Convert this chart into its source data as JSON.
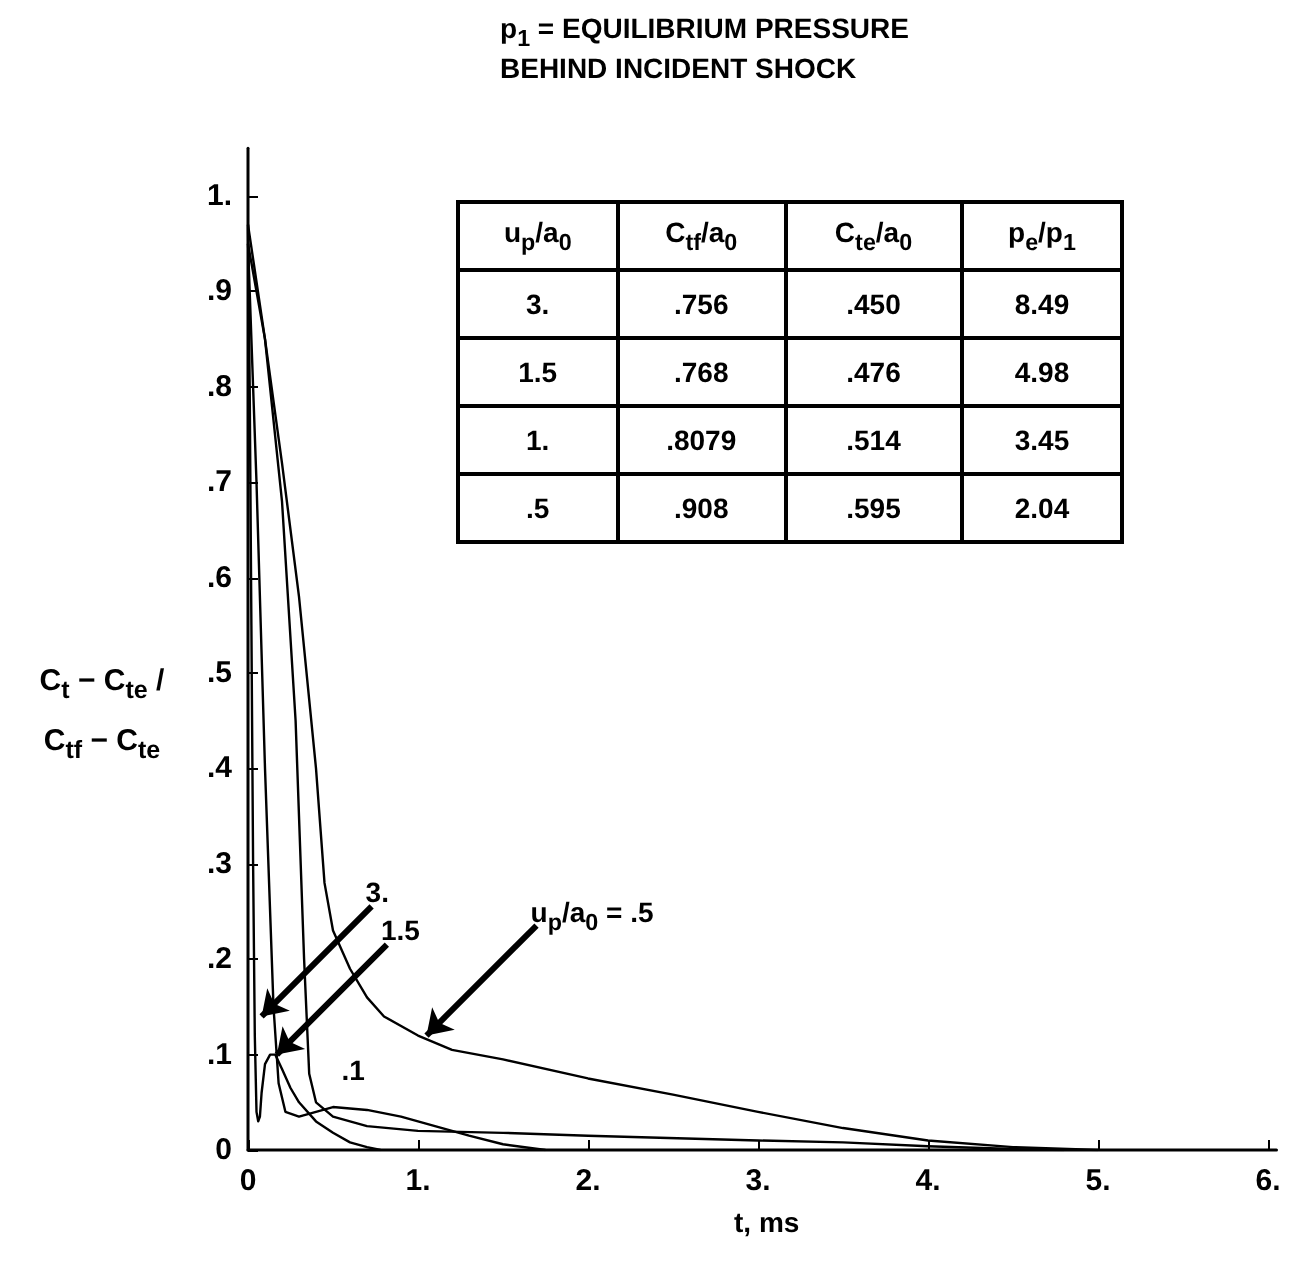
{
  "chart_data": {
    "type": "line",
    "title": "p$_{1}$ = EQUILIBRIUM PRESSURE BEHIND INCIDENT SHOCK",
    "xlabel": "t, ms",
    "ylabel": "C$_{t}$ − C$_{t}$$_{e}$ / C$_{t}$$_{f}$ − C$_{t}$$_{e}$",
    "xlim": [
      0,
      6.05
    ],
    "ylim": [
      0,
      1.05
    ],
    "xticks": [
      0,
      {
        "value": 1,
        "label": "1."
      },
      {
        "value": 2,
        "label": "2."
      },
      {
        "value": 3,
        "label": "3."
      },
      {
        "value": 4,
        "label": "4."
      },
      {
        "value": 5,
        "label": "5."
      },
      {
        "value": 6,
        "label": "6."
      }
    ],
    "yticks": [
      0,
      {
        "value": 0.1,
        "label": ".1"
      },
      {
        "value": 0.2,
        "label": ".2"
      },
      {
        "value": 0.3,
        "label": ".3"
      },
      {
        "value": 0.4,
        "label": ".4"
      },
      {
        "value": 0.5,
        "label": ".5"
      },
      {
        "value": 0.6,
        "label": ".6"
      },
      {
        "value": 0.7,
        "label": ".7"
      },
      {
        "value": 0.8,
        "label": ".8"
      },
      {
        "value": 0.9,
        "label": ".9"
      },
      {
        "value": 1,
        "label": "1."
      }
    ],
    "grid": false,
    "marker": "none",
    "line_style": "solid",
    "series": [
      {
        "color": "#000000",
        "x": [
          0,
          0.01,
          0.02,
          0.03,
          0.04,
          0.05,
          0.06,
          0.07,
          0.08,
          0.1,
          0.13,
          0.16,
          0.2,
          0.25,
          0.3,
          0.4,
          0.5,
          0.6,
          0.7,
          0.78
        ],
        "values": [
          0.97,
          0.8,
          0.55,
          0.3,
          0.12,
          0.04,
          0.03,
          0.035,
          0.06,
          0.09,
          0.1,
          0.1,
          0.085,
          0.065,
          0.05,
          0.03,
          0.018,
          0.008,
          0.003,
          0
        ]
      },
      {
        "color": "#000000",
        "x": [
          0,
          0.05,
          0.1,
          0.15,
          0.18,
          0.22,
          0.3,
          0.4,
          0.5,
          0.7,
          0.9,
          1.1,
          1.3,
          1.5,
          1.75
        ],
        "values": [
          0.95,
          0.7,
          0.4,
          0.15,
          0.07,
          0.04,
          0.035,
          0.04,
          0.045,
          0.042,
          0.035,
          0.025,
          0.015,
          0.006,
          0
        ]
      },
      {
        "color": "#000000",
        "x": [
          0,
          0.1,
          0.2,
          0.28,
          0.33,
          0.36,
          0.4,
          0.5,
          0.7,
          1.0,
          1.5,
          2,
          3,
          3.5,
          4,
          4.5,
          4.8
        ],
        "values": [
          0.95,
          0.85,
          0.68,
          0.45,
          0.2,
          0.08,
          0.05,
          0.035,
          0.025,
          0.02,
          0.018,
          0.015,
          0.01,
          0.008,
          0.004,
          0.001,
          0
        ]
      },
      {
        "color": "#000000",
        "x": [
          0,
          0.1,
          0.2,
          0.3,
          0.4,
          0.45,
          0.5,
          0.6,
          0.7,
          0.8,
          1.0,
          1.2,
          1.5,
          2,
          2.5,
          3,
          3.5,
          4,
          4.5,
          5
        ],
        "values": [
          0.97,
          0.85,
          0.72,
          0.58,
          0.4,
          0.28,
          0.23,
          0.19,
          0.16,
          0.14,
          0.12,
          0.105,
          0.095,
          0.075,
          0.058,
          0.04,
          0.023,
          0.01,
          0.003,
          0
        ]
      }
    ],
    "annotations": [
      {
        "text": "3.",
        "x": 0.08,
        "y": 0.14
      },
      {
        "text": "1.5",
        "x": 0.17,
        "y": 0.1
      },
      {
        "text": "u$_{p}$/a$_{0}$ = .5",
        "x": 1.05,
        "y": 0.12
      },
      "u$_{p}$/a$_{0}$",
      "C$_{t}$$_{f}$/a$_{0}$",
      "C$_{t}$$_{e}$/a$_{0}$",
      "p$_{e}$/p$_{1}$",
      "3.",
      ".756",
      ".450",
      "8.49",
      "1.5",
      ".768",
      ".476",
      "4.98",
      "1.",
      ".8079",
      ".514",
      "3.45",
      ".5",
      ".908",
      ".595",
      "2.04",
      ".1"
    ]
  }
}
